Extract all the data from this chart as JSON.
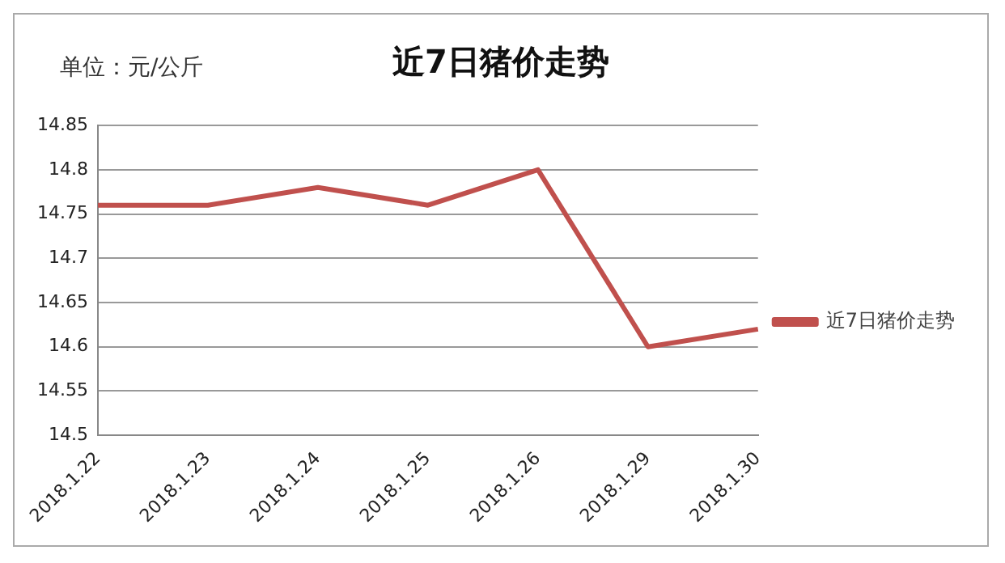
{
  "chart_data": {
    "type": "line",
    "title": "近7日猪价走势",
    "ylabel": "单位：元/公斤",
    "categories": [
      "2018.1.22",
      "2018.1.23",
      "2018.1.24",
      "2018.1.25",
      "2018.1.26",
      "2018.1.29",
      "2018.1.30"
    ],
    "series": [
      {
        "name": "近7日猪价走势",
        "color": "#c0504d",
        "values": [
          14.76,
          14.76,
          14.78,
          14.76,
          14.8,
          14.6,
          14.62
        ]
      }
    ],
    "ylim": [
      14.5,
      14.85
    ],
    "yticks": [
      14.5,
      14.55,
      14.6,
      14.65,
      14.7,
      14.75,
      14.8,
      14.85
    ],
    "grid": "y",
    "legend": "right",
    "marker": "none",
    "line_style": "solid"
  }
}
